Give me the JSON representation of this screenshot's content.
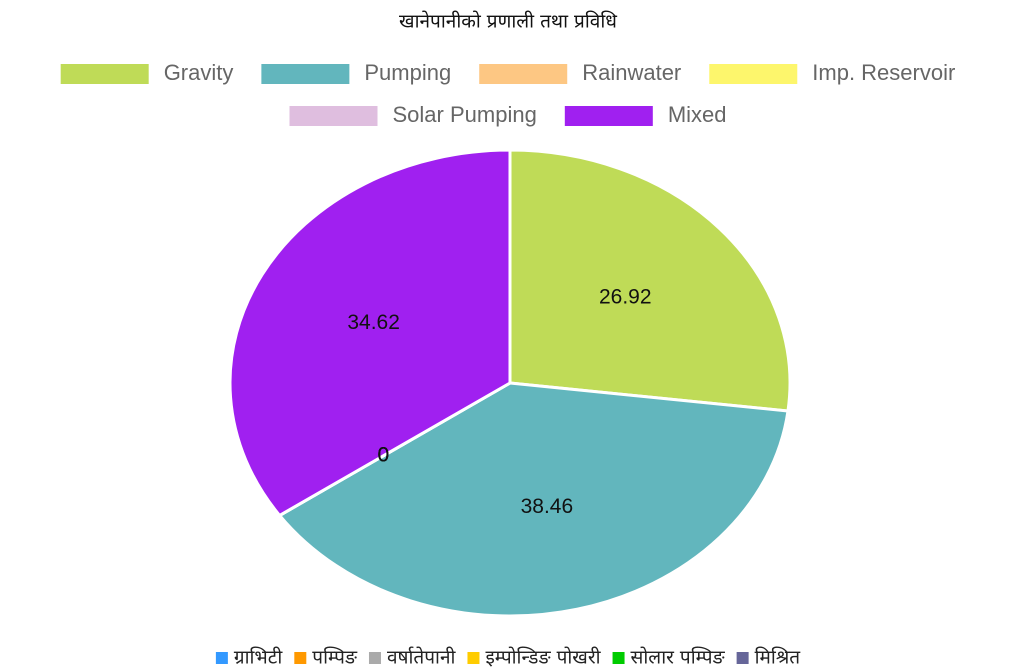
{
  "chart_data": {
    "type": "pie",
    "title": "खानेपानीको प्रणाली तथा प्रविधि",
    "categories": [
      "Gravity",
      "Pumping",
      "Rainwater",
      "Imp. Reservoir",
      "Solar Pumping",
      "Mixed"
    ],
    "values": [
      26.92,
      38.46,
      0,
      0,
      0,
      34.62
    ],
    "colors": [
      "#bfdb57",
      "#62b6bd",
      "#fdc783",
      "#fdf66c",
      "#dfbedf",
      "#a020f0"
    ],
    "legend2": [
      {
        "name": "ग्राभिटी",
        "color": "#3399ff"
      },
      {
        "name": "पम्पिङ",
        "color": "#ff9900"
      },
      {
        "name": "वर्षातेपानी",
        "color": "#aaaaaa"
      },
      {
        "name": "इम्पोन्डिङ पोखरी",
        "color": "#ffcc00"
      },
      {
        "name": "सोलार पम्पिङ",
        "color": "#00cc00"
      },
      {
        "name": "मिश्रित",
        "color": "#666699"
      }
    ]
  }
}
